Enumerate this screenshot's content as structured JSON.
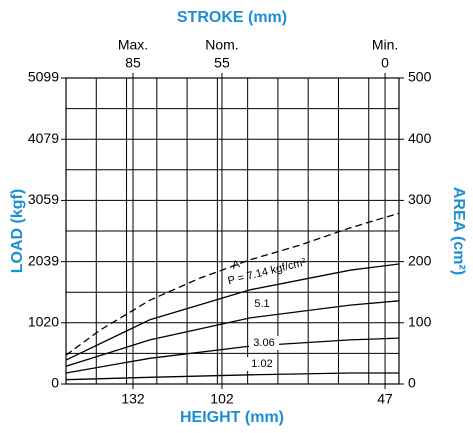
{
  "chart_data": {
    "type": "line",
    "title": "STROKE (mm)",
    "xlabel": "HEIGHT (mm)",
    "ylabel": "LOAD (kgf)",
    "y2label": "AREA (cm²)",
    "xlim": [
      154.6,
      42.3
    ],
    "xticks": [
      132,
      102,
      47
    ],
    "x2lim": [
      107.6,
      -4.7
    ],
    "x2ticks": [
      85,
      55,
      0
    ],
    "x2tick_notes": [
      "Max.",
      "Nom.",
      "Min."
    ],
    "ylim": [
      0,
      5099
    ],
    "yticks": [
      0,
      1020,
      2039,
      3059,
      4079,
      5099
    ],
    "y2lim": [
      0,
      500
    ],
    "y2ticks": [
      0,
      100,
      200,
      300,
      400,
      500
    ],
    "grid": true,
    "series": [
      {
        "name": "A",
        "color": "#000000",
        "dashed": true,
        "axis": "y2",
        "x": [
          154.6,
          143.1,
          126.3,
          109.4,
          92.5,
          75.7,
          58.8,
          42.3
        ],
        "values": [
          47,
          88,
          137,
          173,
          203,
          227,
          255,
          279
        ]
      },
      {
        "name": "P = 7.14 kgf/cm²",
        "color": "#000000",
        "axis": "y2",
        "x": [
          154.6,
          126.3,
          92.5,
          58.8,
          42.3
        ],
        "values": [
          39,
          105,
          154,
          186,
          196
        ]
      },
      {
        "name": "5.1",
        "color": "#000000",
        "axis": "y2",
        "x": [
          154.6,
          126.3,
          92.5,
          58.8,
          42.3
        ],
        "values": [
          29,
          72,
          108,
          129,
          136
        ]
      },
      {
        "name": "3.06",
        "color": "#000000",
        "axis": "y2",
        "x": [
          154.6,
          126.3,
          92.5,
          58.8,
          42.3
        ],
        "values": [
          18,
          42,
          62,
          72,
          75
        ]
      },
      {
        "name": "1.02",
        "color": "#000000",
        "axis": "y2",
        "x": [
          154.6,
          126.3,
          92.5,
          58.8,
          42.3
        ],
        "values": [
          7,
          11,
          15,
          18,
          18
        ]
      }
    ]
  }
}
